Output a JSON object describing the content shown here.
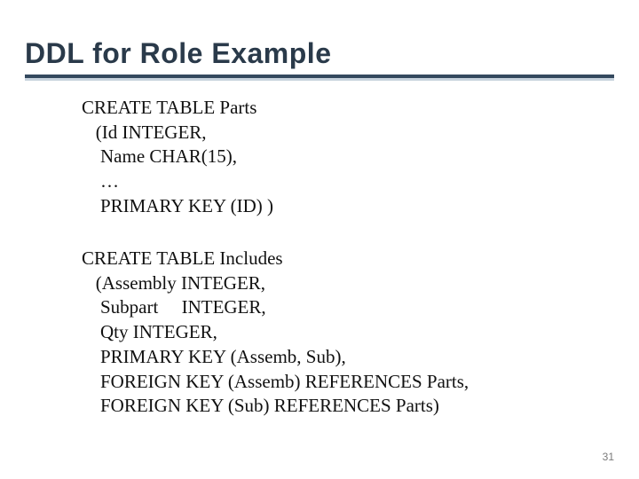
{
  "title": "DDL for Role Example",
  "colors": {
    "title_color": "#2a3a4a",
    "underline_dark": "#34495e",
    "underline_light": "#c7d3dd",
    "text_color": "#111111",
    "page_num_color": "#7a7a7a",
    "background": "#ffffff"
  },
  "typography": {
    "title_font": "Gill Sans / sans-serif",
    "title_size_pt": 24,
    "title_weight": "bold",
    "body_font": "Times New Roman / serif",
    "body_size_pt": 16,
    "body_line_height": 1.32
  },
  "block1": {
    "l0": "CREATE TABLE Parts",
    "l1": "   (Id INTEGER,",
    "l2": "    Name CHAR(15),",
    "l3": "    …",
    "l4": "    PRIMARY KEY (ID) )"
  },
  "block2": {
    "l0": "CREATE TABLE Includes",
    "l1": "   (Assembly INTEGER,",
    "l2": "    Subpart     INTEGER,",
    "l3": "    Qty INTEGER,",
    "l4": "    PRIMARY KEY (Assemb, Sub),",
    "l5": "    FOREIGN KEY (Assemb) REFERENCES Parts,",
    "l6": "    FOREIGN KEY (Sub) REFERENCES Parts)"
  },
  "page_number": "31"
}
